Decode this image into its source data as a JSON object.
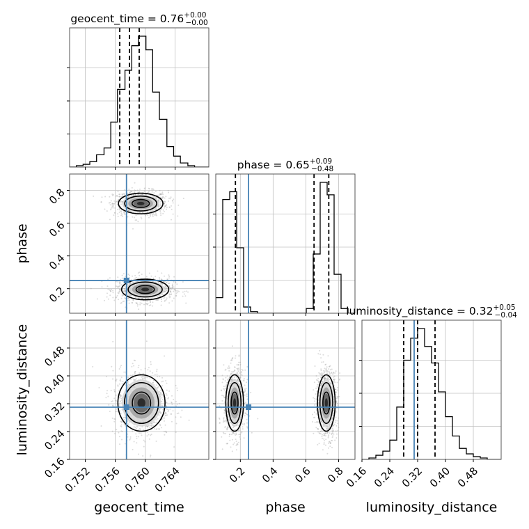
{
  "figure": {
    "colors": {
      "truth": "#4682b4",
      "hist": "#000000",
      "grid": "#c0c0c0",
      "scatter": "#9a9a9a"
    }
  },
  "chart_data": {
    "type": "corner",
    "parameters": [
      "geocent_time",
      "phase",
      "luminosity_distance"
    ],
    "truths": {
      "geocent_time": 0.7575,
      "phase": 0.25,
      "luminosity_distance": 0.31
    },
    "titles": [
      {
        "text": "geocent_time = 0.76",
        "sup": "+0.00",
        "sub": "−0.00"
      },
      {
        "text": "phase = 0.65",
        "sup": "+0.09",
        "sub": "−0.48"
      },
      {
        "text": "luminosity_distance = 0.32",
        "sup": "+0.05",
        "sub": "−0.04"
      }
    ],
    "axes": {
      "geocent_time": {
        "label": "geocent_time",
        "range": [
          0.7499,
          0.7685
        ],
        "ticks": [
          0.752,
          0.756,
          0.76,
          0.764
        ],
        "tick_labels": [
          "0.752",
          "0.756",
          "0.760",
          "0.764"
        ]
      },
      "phase": {
        "label": "phase",
        "range": [
          0.05,
          0.9
        ],
        "ticks": [
          0.2,
          0.4,
          0.6,
          0.8
        ],
        "tick_labels": [
          "0.2",
          "0.4",
          "0.6",
          "0.8"
        ]
      },
      "luminosity_distance": {
        "label": "luminosity_distance",
        "range": [
          0.16,
          0.56
        ],
        "ticks": [
          0.16,
          0.24,
          0.32,
          0.4,
          0.48
        ],
        "tick_labels": [
          "0.16",
          "0.24",
          "0.32",
          "0.40",
          "0.48"
        ]
      }
    },
    "histograms": {
      "geocent_time": {
        "bin_edges": [
          0.7499,
          0.7508,
          0.7517,
          0.7526,
          0.7535,
          0.7545,
          0.7554,
          0.7563,
          0.7573,
          0.7582,
          0.7591,
          0.7601,
          0.761,
          0.7619,
          0.7629,
          0.7638,
          0.7647,
          0.7657,
          0.7666,
          0.7675,
          0.7685
        ],
        "counts": [
          0,
          1,
          2,
          4,
          9,
          14,
          33,
          57,
          71,
          89,
          96,
          86,
          55,
          35,
          15,
          8,
          3,
          1,
          0,
          0
        ],
        "quantiles": [
          0.7566,
          0.7579,
          0.7592
        ]
      },
      "phase": {
        "bin_edges": [
          0.05,
          0.0925,
          0.135,
          0.1775,
          0.22,
          0.2625,
          0.305,
          0.3475,
          0.39,
          0.4325,
          0.475,
          0.5175,
          0.56,
          0.6025,
          0.645,
          0.6875,
          0.73,
          0.7725,
          0.815,
          0.8575,
          0.9
        ],
        "counts": [
          10,
          73,
          78,
          42,
          4,
          1,
          0,
          0,
          0,
          0,
          0,
          0,
          0,
          3,
          38,
          84,
          76,
          25,
          3,
          0
        ],
        "quantiles": [
          0.17,
          0.65,
          0.74
        ]
      },
      "luminosity_distance": {
        "bin_edges": [
          0.16,
          0.18,
          0.2,
          0.22,
          0.24,
          0.26,
          0.28,
          0.3,
          0.32,
          0.34,
          0.36,
          0.38,
          0.4,
          0.42,
          0.44,
          0.46,
          0.48,
          0.5,
          0.52,
          0.54,
          0.56
        ],
        "counts": [
          0,
          1,
          3,
          6,
          14,
          38,
          72,
          88,
          95,
          82,
          70,
          49,
          31,
          17,
          8,
          4,
          2,
          1,
          0,
          0
        ],
        "quantiles": [
          0.28,
          0.32,
          0.37
        ]
      }
    },
    "blobs": [
      {
        "x": "geocent_time",
        "y": "phase",
        "cx": 0.7594,
        "cy": 0.72,
        "sx": 0.00165,
        "sy": 0.035
      },
      {
        "x": "geocent_time",
        "y": "phase",
        "cx": 0.76,
        "cy": 0.195,
        "sx": 0.00175,
        "sy": 0.035
      },
      {
        "x": "geocent_time",
        "y": "luminosity_distance",
        "cx": 0.7595,
        "cy": 0.322,
        "sx": 0.00175,
        "sy": 0.045
      },
      {
        "x": "phase",
        "y": "luminosity_distance",
        "cx": 0.165,
        "cy": 0.322,
        "sx": 0.03,
        "sy": 0.045
      },
      {
        "x": "phase",
        "y": "luminosity_distance",
        "cx": 0.725,
        "cy": 0.322,
        "sx": 0.03,
        "sy": 0.045
      }
    ]
  }
}
